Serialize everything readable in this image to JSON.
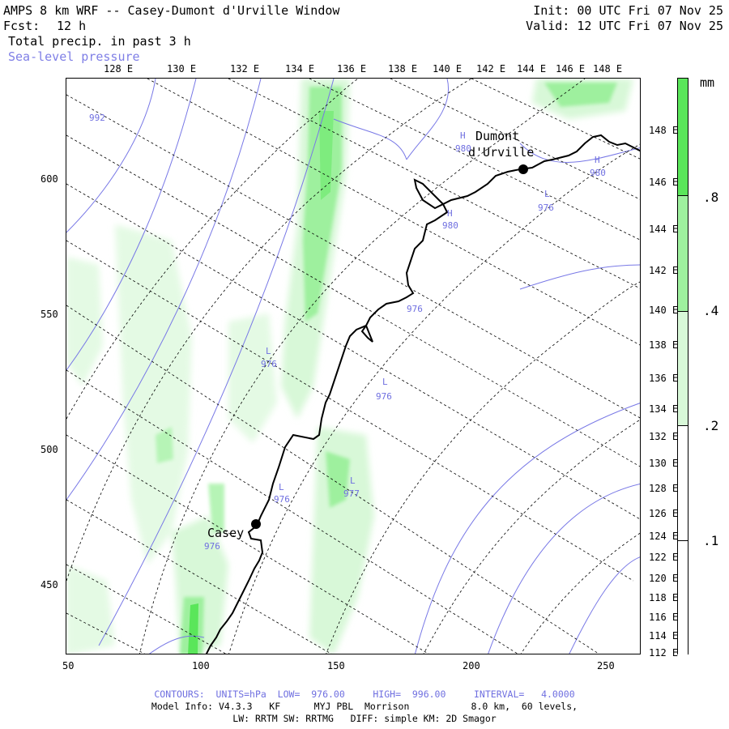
{
  "header": {
    "title": "AMPS 8 km WRF -- Casey-Dumont d'Urville Window",
    "fcst_label": "Fcst:",
    "fcst_value": "12 h",
    "field": "Total precip. in past 3 h",
    "overlay": "Sea-level pressure",
    "init": "Init: 00 UTC Fri 07 Nov 25",
    "valid": "Valid: 12 UTC Fri 07 Nov 25"
  },
  "top_axis": [
    "128 E",
    "130 E",
    "132 E",
    "134 E",
    "136 E",
    "138 E",
    "140 E",
    "142 E",
    "144 E",
    "146 E",
    "148 E"
  ],
  "right_axis": [
    "148 E",
    "146 E",
    "144 E",
    "142 E",
    "140 E",
    "138 E",
    "136 E",
    "134 E",
    "132 E",
    "130 E",
    "128 E",
    "126 E",
    "124 E",
    "122 E",
    "120 E",
    "118 E",
    "116 E",
    "114 E",
    "112 E"
  ],
  "left_axis": [
    "600",
    "550",
    "500",
    "450"
  ],
  "bottom_axis": [
    "50",
    "100",
    "150",
    "200",
    "250"
  ],
  "stations": [
    {
      "name_line1": "Dumont",
      "name_line2": "d'Urville"
    },
    {
      "name_line1": "Casey",
      "name_line2": ""
    }
  ],
  "pressure_labels": [
    {
      "kind": "",
      "value": "992"
    },
    {
      "kind": "H",
      "value": "980"
    },
    {
      "kind": "H",
      "value": "980"
    },
    {
      "kind": "H",
      "value": "980"
    },
    {
      "kind": "L",
      "value": "976"
    },
    {
      "kind": "L",
      "value": "976"
    },
    {
      "kind": "L",
      "value": "976"
    },
    {
      "kind": "L",
      "value": "977"
    },
    {
      "kind": "L",
      "value": "976"
    },
    {
      "kind": "",
      "value": "976"
    },
    {
      "kind": "",
      "value": "976"
    }
  ],
  "colorbar": {
    "unit": "mm",
    "ticks": [
      ".8",
      ".4",
      ".2",
      ".1"
    ],
    "colors": [
      "#5ae65a",
      "#9ef09e",
      "#d8f8d8",
      "#ffffff"
    ]
  },
  "footer": {
    "contours": "CONTOURS:  UNITS=hPa  LOW=  976.00     HIGH=  996.00     INTERVAL=   4.0000",
    "model_info": "Model Info: V4.3.3   KF      MYJ PBL  Morrison           8.0 km,  60 levels,",
    "physics": "LW: RRTM SW: RRTMG   DIFF: simple KM: 2D Smagor"
  }
}
